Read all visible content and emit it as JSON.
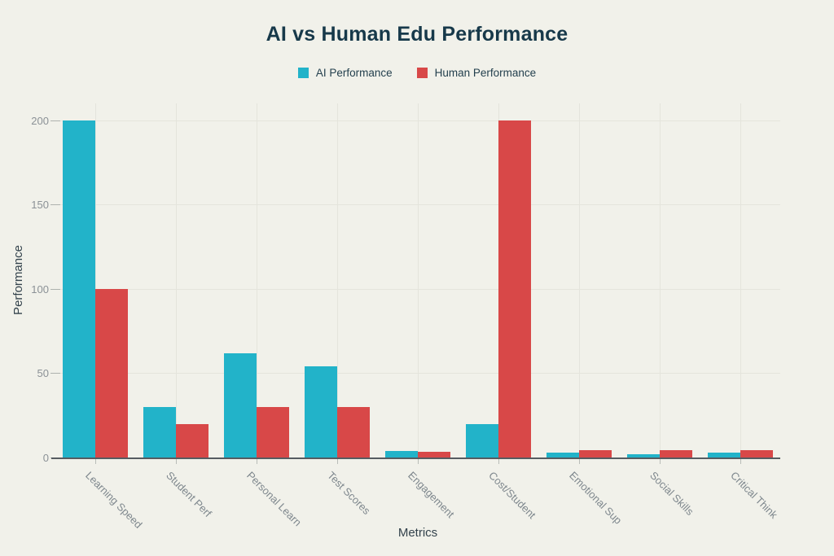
{
  "title": "AI vs Human Edu Performance",
  "legend": {
    "items": [
      {
        "label": "AI Performance",
        "color": "#22b3c9"
      },
      {
        "label": "Human Performance",
        "color": "#d84848"
      }
    ]
  },
  "axes": {
    "x_label": "Metrics",
    "y_label": "Performance"
  },
  "colors": {
    "background": "#f1f1ea",
    "grid": "#e4e4dc",
    "axis_line": "#565c61",
    "title_text": "#17394a",
    "tick_text": "#8b9196",
    "category_text": "#7e878d",
    "axis_title_text": "#33424c"
  },
  "chart_data": {
    "type": "bar",
    "title": "AI vs Human Edu Performance",
    "xlabel": "Metrics",
    "ylabel": "Performance",
    "categories": [
      "Learning Speed",
      "Student Perf",
      "Personal Learn",
      "Test Scores",
      "Engagement",
      "Cost/Student",
      "Emotional Sup",
      "Social Skills",
      "Critical Think"
    ],
    "series": [
      {
        "name": "AI Performance",
        "color": "#22b3c9",
        "values": [
          200,
          30,
          62,
          54,
          4,
          20,
          3,
          2,
          3
        ]
      },
      {
        "name": "Human Performance",
        "color": "#d84848",
        "values": [
          100,
          20,
          30,
          30,
          3.5,
          200,
          4.5,
          4.5,
          4.5
        ]
      }
    ],
    "y_ticks": [
      0,
      50,
      100,
      150,
      200
    ],
    "ylim": [
      0,
      210
    ],
    "grid": true,
    "legend_position": "top"
  }
}
